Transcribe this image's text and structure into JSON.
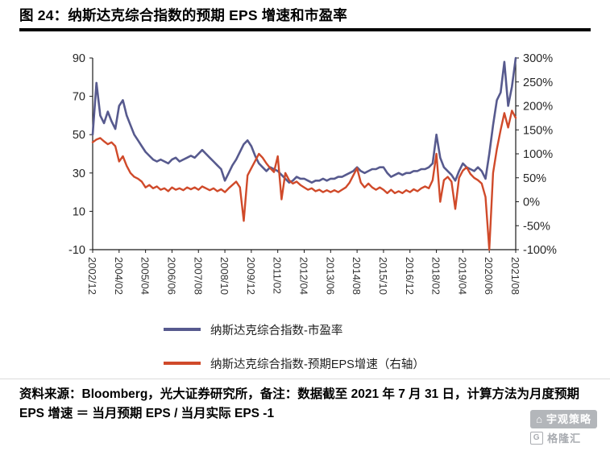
{
  "title": "图 24：纳斯达克综合指数的预期 EPS 增速和市盈率",
  "chart_data": {
    "type": "line",
    "title": "纳斯达克综合指数的预期 EPS 增速和市盈率",
    "x_tick_labels": [
      "2002/12",
      "2004/02",
      "2005/04",
      "2006/06",
      "2007/08",
      "2008/10",
      "2009/12",
      "2011/02",
      "2012/04",
      "2013/06",
      "2014/08",
      "2015/10",
      "2016/12",
      "2018/02",
      "2019/04",
      "2020/06",
      "2021/08"
    ],
    "x_tick_interval_months": 14,
    "x_month_span": 224,
    "grid": "off",
    "legend_position": "bottom",
    "left_axis": {
      "min": -10,
      "max": 90,
      "ticks": [
        90,
        70,
        50,
        30,
        10,
        -10
      ]
    },
    "right_axis": {
      "min": -100,
      "max": 300,
      "ticks": [
        "300%",
        "250%",
        "200%",
        "150%",
        "100%",
        "50%",
        "0%",
        "-50%",
        "-100%"
      ]
    },
    "series": [
      {
        "name": "纳斯达克综合指数-市盈率",
        "axis": "left",
        "color": "#575a8e",
        "width": 2.6,
        "start_month": 0,
        "month_step": 2,
        "values": [
          50,
          77,
          60,
          56,
          62,
          57,
          53,
          65,
          68,
          60,
          55,
          50,
          47,
          44,
          41,
          39,
          37,
          36,
          37,
          36,
          35,
          37,
          38,
          36,
          37,
          38,
          39,
          38,
          40,
          42,
          40,
          38,
          36,
          34,
          32,
          26,
          30,
          34,
          37,
          41,
          45,
          47,
          44,
          39,
          35,
          33,
          31,
          33,
          32,
          31,
          29,
          27,
          25,
          26,
          28,
          27,
          27,
          26,
          25,
          26,
          26,
          27,
          26,
          27,
          27,
          28,
          28,
          29,
          30,
          31,
          33,
          31,
          30,
          31,
          32,
          32,
          33,
          33,
          30,
          28,
          29,
          30,
          29,
          30,
          30,
          31,
          31,
          32,
          32,
          33,
          35,
          50,
          38,
          33,
          31,
          29,
          26,
          31,
          35,
          33,
          32,
          31,
          33,
          31,
          27,
          40,
          55,
          68,
          72,
          88,
          65,
          75,
          90
        ]
      },
      {
        "name": "纳斯达克综合指数-预期EPS增速（右轴）",
        "axis": "right",
        "color": "#d04a2a",
        "width": 2.4,
        "start_month": 0,
        "month_step": 2,
        "values": [
          124,
          130,
          133,
          126,
          120,
          124,
          116,
          84,
          95,
          75,
          60,
          52,
          48,
          42,
          30,
          35,
          28,
          32,
          25,
          28,
          22,
          30,
          25,
          28,
          24,
          30,
          26,
          30,
          25,
          32,
          28,
          24,
          28,
          22,
          26,
          20,
          28,
          35,
          42,
          30,
          -40,
          55,
          70,
          85,
          100,
          92,
          80,
          70,
          62,
          95,
          5,
          60,
          45,
          38,
          42,
          35,
          30,
          25,
          28,
          22,
          25,
          20,
          24,
          20,
          24,
          20,
          25,
          30,
          40,
          55,
          70,
          40,
          30,
          38,
          30,
          25,
          30,
          25,
          18,
          25,
          18,
          22,
          18,
          24,
          20,
          26,
          22,
          28,
          32,
          28,
          45,
          100,
          0,
          45,
          52,
          42,
          -15,
          50,
          65,
          72,
          58,
          50,
          45,
          38,
          10,
          -100,
          60,
          110,
          150,
          185,
          155,
          190,
          175
        ]
      }
    ]
  },
  "legend": {
    "item1": "纳斯达克综合指数-市盈率",
    "item2": "纳斯达克综合指数-预期EPS增速（右轴）"
  },
  "source": {
    "text": "资料来源：Bloomberg，光大证券研究所，备注：数据截至 2021 年 7 月 31 日，计算方法为月度预期 EPS 增速 ＝ 当月预期 EPS / 当月实际 EPS -1"
  },
  "watermark": {
    "brand1": "宇观策略",
    "brand2": "格隆汇"
  }
}
